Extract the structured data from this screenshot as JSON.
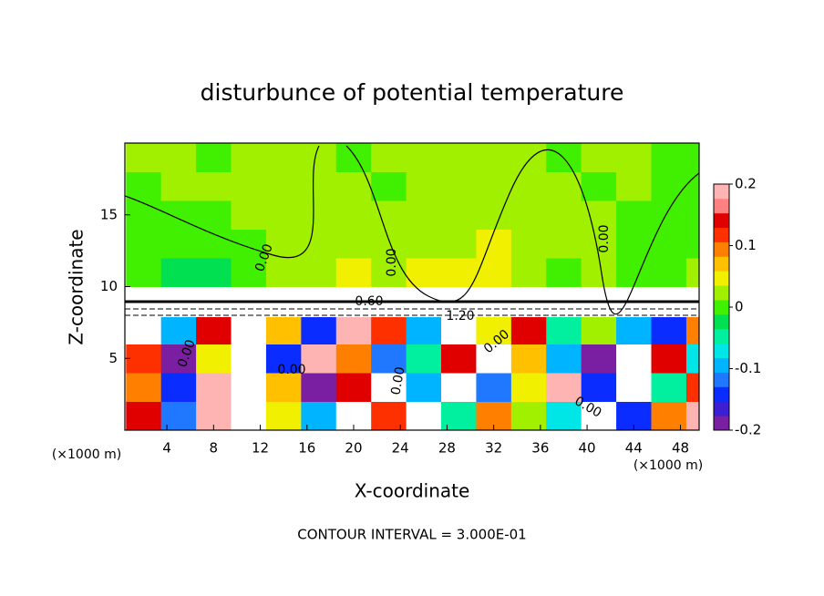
{
  "chart_data": {
    "type": "heatmap",
    "title": "disturbunce of potential temperature",
    "x_label": "X-coordinate",
    "y_label": "Z-coordinate",
    "x_unit_label": "(×1000 m)",
    "footer": "CONTOUR INTERVAL = 3.000E-01",
    "contour_labels": [
      "0.00",
      "0.00",
      "0.00",
      "0.60",
      "1.20",
      "0.00",
      "0.00",
      "0.00",
      "0.00",
      "0.00"
    ],
    "xlim": [
      0.4,
      49.6
    ],
    "ylim": [
      0,
      20
    ],
    "xticks": [
      4,
      8,
      12,
      16,
      20,
      24,
      28,
      32,
      36,
      40,
      44,
      48
    ],
    "yticks": [
      5,
      10,
      15
    ],
    "zlim": [
      -0.2,
      0.2
    ],
    "zticks": [
      -0.2,
      -0.1,
      0,
      0.1,
      0.2
    ],
    "colormap": [
      "#7a1fa2",
      "#3c1fd2",
      "#0a2cff",
      "#1f78ff",
      "#00b4ff",
      "#00e6e6",
      "#00f0a0",
      "#00e050",
      "#40f000",
      "#a0f000",
      "#f0f000",
      "#ffc000",
      "#ff8000",
      "#ff3000",
      "#e00000",
      "#ff8080",
      "#ffb4b4"
    ],
    "out_of_range_color": "#ffffff",
    "x": [
      2,
      5,
      8,
      11,
      14,
      17,
      20,
      23,
      26,
      29,
      32,
      35,
      38,
      41,
      44,
      47,
      50
    ],
    "y": [
      1,
      3,
      5,
      7,
      9,
      11,
      13,
      15,
      17,
      19
    ],
    "z": [
      [
        0.15,
        -0.12,
        0.18,
        0.3,
        0.05,
        -0.1,
        0.25,
        0.12,
        0.3,
        -0.05,
        0.1,
        0.02,
        -0.08,
        0.3,
        -0.15,
        0.1,
        0.2
      ],
      [
        0.1,
        -0.15,
        0.2,
        0.3,
        0.08,
        -0.18,
        0.15,
        0.25,
        -0.1,
        0.3,
        -0.12,
        0.05,
        0.18,
        -0.15,
        0.3,
        -0.05,
        0.12
      ],
      [
        0.12,
        -0.18,
        0.05,
        0.3,
        -0.15,
        0.2,
        0.1,
        -0.12,
        -0.05,
        0.15,
        0.3,
        0.08,
        -0.1,
        -0.18,
        0.25,
        0.15,
        -0.08
      ],
      [
        0.3,
        -0.1,
        0.15,
        0.3,
        0.08,
        -0.15,
        0.2,
        0.12,
        -0.1,
        0.3,
        0.05,
        0.15,
        -0.05,
        0.02,
        -0.1,
        -0.15,
        0.1
      ],
      [
        0.3,
        0.3,
        0.3,
        0.3,
        0.3,
        0.3,
        0.6,
        0.6,
        0.9,
        1.2,
        1.2,
        0.6,
        0.3,
        0.3,
        0.3,
        0.3,
        0.3
      ],
      [
        0.0,
        -0.02,
        -0.03,
        -0.01,
        0.02,
        0.03,
        0.04,
        0.02,
        0.05,
        0.04,
        0.05,
        0.03,
        0.01,
        0.02,
        0.0,
        0.01,
        0.02
      ],
      [
        0.01,
        0.0,
        -0.01,
        0.01,
        0.02,
        0.03,
        0.02,
        0.03,
        0.02,
        0.02,
        0.04,
        0.03,
        0.02,
        0.02,
        0.01,
        0.01,
        0.0
      ],
      [
        0.0,
        0.01,
        0.01,
        0.02,
        0.02,
        0.02,
        0.02,
        0.03,
        0.02,
        0.02,
        0.02,
        0.03,
        0.02,
        0.02,
        0.01,
        0.0,
        0.01
      ],
      [
        0.01,
        0.02,
        0.02,
        0.02,
        0.02,
        0.02,
        0.02,
        0.01,
        0.02,
        0.02,
        0.02,
        0.02,
        0.02,
        0.01,
        0.02,
        0.01,
        0.0
      ],
      [
        0.02,
        0.02,
        0.01,
        0.02,
        0.02,
        0.02,
        0.01,
        0.02,
        0.02,
        0.02,
        0.02,
        0.02,
        0.01,
        0.02,
        0.02,
        0.01,
        0.01
      ]
    ]
  }
}
